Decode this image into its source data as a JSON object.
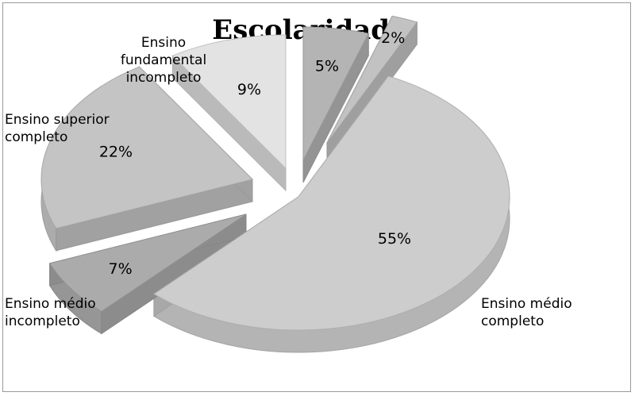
{
  "chart_data": {
    "type": "pie",
    "title": "Escolaridade",
    "slices": [
      {
        "label": "Ensino fundamental\nincompleto",
        "value": 9,
        "value_label": "9%",
        "color": "#e3e3e3"
      },
      {
        "label": "",
        "value": 5,
        "value_label": "5%",
        "color": "#b4b4b4"
      },
      {
        "label": "",
        "value": 2,
        "value_label": "2%",
        "color": "#c2c2c2"
      },
      {
        "label": "Ensino médio\ncompleto",
        "value": 55,
        "value_label": "55%",
        "color": "#cdcdcd"
      },
      {
        "label": "Ensino médio\nincompleto",
        "value": 7,
        "value_label": "7%",
        "color": "#ababab"
      },
      {
        "label": "Ensino superior\ncompleto",
        "value": 22,
        "value_label": "22%",
        "color": "#c4c4c4"
      }
    ],
    "style": "3d-exploded",
    "legend": "none"
  }
}
